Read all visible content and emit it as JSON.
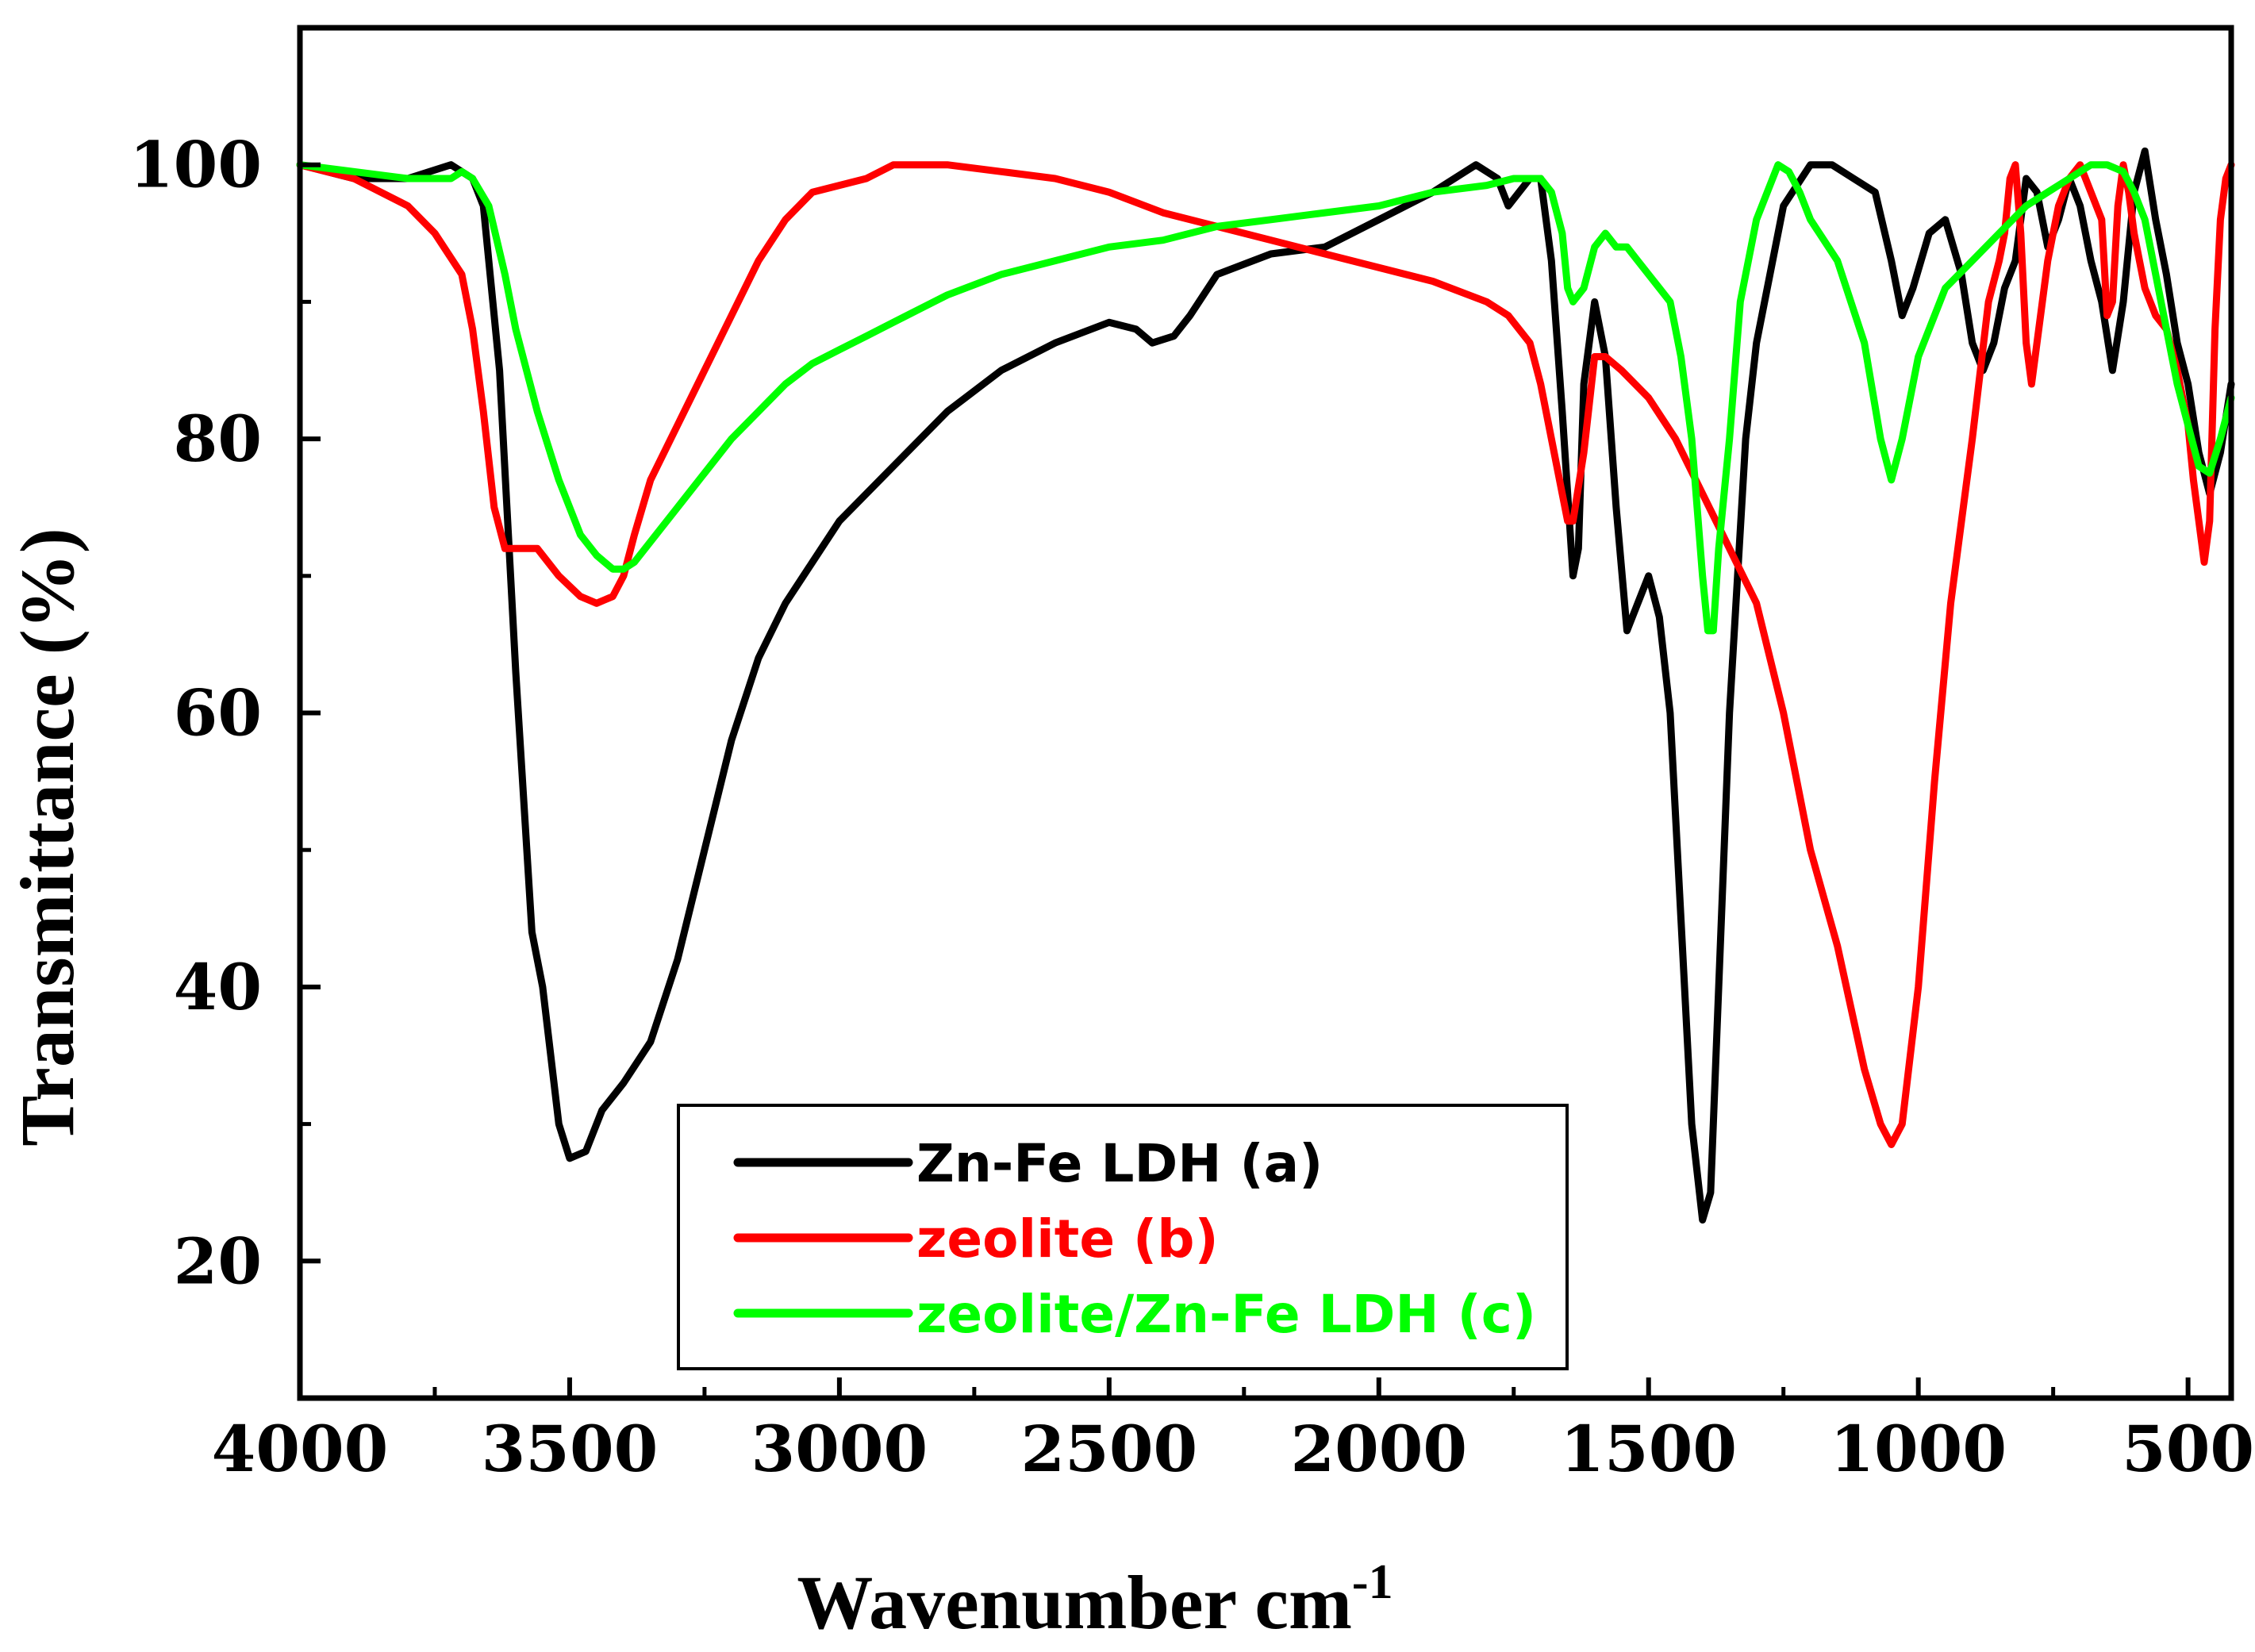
{
  "chart_data": {
    "type": "line",
    "title": "",
    "xlabel": "Wavenumber cm",
    "xlabel_superscript": "-1",
    "ylabel": "Transmittance (%)",
    "xlim": [
      4000,
      420
    ],
    "ylim": [
      10,
      110
    ],
    "x_ticks": [
      4000,
      3500,
      3000,
      2500,
      2000,
      1500,
      1000,
      500
    ],
    "y_ticks": [
      20,
      40,
      60,
      80,
      100
    ],
    "legend_position": "bottom-center",
    "series": [
      {
        "name": "Zn-Fe LDH (a)",
        "color": "#000000",
        "x": [
          4000,
          3900,
          3800,
          3720,
          3680,
          3660,
          3630,
          3600,
          3570,
          3550,
          3520,
          3500,
          3470,
          3440,
          3400,
          3350,
          3300,
          3250,
          3200,
          3150,
          3100,
          3050,
          3000,
          2900,
          2800,
          2700,
          2600,
          2500,
          2450,
          2420,
          2380,
          2350,
          2300,
          2200,
          2100,
          2000,
          1900,
          1820,
          1780,
          1760,
          1740,
          1720,
          1700,
          1680,
          1660,
          1640,
          1630,
          1620,
          1600,
          1580,
          1560,
          1540,
          1520,
          1500,
          1480,
          1460,
          1440,
          1420,
          1400,
          1385,
          1370,
          1350,
          1320,
          1300,
          1270,
          1250,
          1200,
          1160,
          1120,
          1080,
          1050,
          1030,
          1010,
          980,
          950,
          920,
          900,
          880,
          860,
          840,
          820,
          800,
          780,
          760,
          740,
          720,
          700,
          680,
          660,
          640,
          620,
          600,
          580,
          560,
          540,
          520,
          500,
          480,
          460,
          440,
          420
        ],
        "y": [
          100,
          99,
          99,
          100,
          99,
          97,
          85,
          63,
          44,
          40,
          30,
          27.5,
          28,
          31,
          33,
          36,
          42,
          50,
          58,
          64,
          68,
          71,
          74,
          78,
          82,
          85,
          87,
          88.5,
          88,
          87,
          87.5,
          89,
          92,
          93.5,
          94,
          96,
          98,
          100,
          99,
          97,
          98,
          99,
          99,
          93,
          82,
          70,
          72,
          84,
          90,
          86,
          75,
          66,
          68,
          70,
          67,
          60,
          45,
          30,
          23,
          25,
          40,
          60,
          80,
          87,
          93,
          97,
          100,
          100,
          99,
          98,
          93,
          89,
          91,
          95,
          96,
          92,
          87,
          85,
          87,
          91,
          93,
          99,
          98,
          94,
          96,
          99,
          97,
          93,
          90,
          85,
          90,
          98,
          101,
          96,
          92,
          87,
          84,
          79,
          76,
          79,
          84
        ]
      },
      {
        "name": "zeolite (b)",
        "color": "#ff0000",
        "x": [
          4000,
          3900,
          3800,
          3750,
          3700,
          3680,
          3660,
          3640,
          3620,
          3600,
          3560,
          3520,
          3480,
          3450,
          3420,
          3400,
          3380,
          3350,
          3300,
          3250,
          3200,
          3150,
          3100,
          3050,
          3000,
          2950,
          2900,
          2850,
          2800,
          2700,
          2600,
          2500,
          2400,
          2300,
          2200,
          2100,
          2000,
          1900,
          1800,
          1760,
          1720,
          1700,
          1680,
          1660,
          1650,
          1640,
          1620,
          1600,
          1580,
          1550,
          1500,
          1450,
          1400,
          1350,
          1300,
          1250,
          1200,
          1150,
          1100,
          1070,
          1050,
          1030,
          1000,
          970,
          940,
          900,
          870,
          850,
          840,
          830,
          820,
          810,
          800,
          790,
          780,
          760,
          740,
          720,
          700,
          680,
          660,
          650,
          640,
          630,
          620,
          610,
          600,
          590,
          580,
          560,
          540,
          520,
          500,
          490,
          480,
          470,
          460,
          450,
          440,
          430,
          420
        ],
        "y": [
          100,
          99,
          97,
          95,
          92,
          88,
          82,
          75,
          72,
          72,
          72,
          70,
          68.5,
          68,
          68.5,
          70,
          73,
          77,
          81,
          85,
          89,
          93,
          96,
          98,
          98.5,
          99,
          100,
          100,
          100,
          99.5,
          99,
          98,
          96.5,
          95.5,
          94.5,
          93.5,
          92.5,
          91.5,
          90,
          89,
          87,
          84,
          80,
          76,
          74,
          74,
          79,
          86,
          86,
          85,
          83,
          80,
          76,
          72,
          68,
          60,
          50,
          43,
          34,
          30,
          28.5,
          30,
          40,
          55,
          68,
          80,
          90,
          93,
          95,
          99,
          100,
          95,
          87,
          84,
          87,
          93,
          97,
          99,
          100,
          98,
          96,
          89,
          90,
          97,
          100,
          98,
          95,
          93,
          91,
          89,
          88,
          85,
          81,
          77,
          74,
          71,
          74,
          88,
          96,
          99,
          100
        ]
      },
      {
        "name": "zeolite/Zn-Fe LDH (c)",
        "color": "#00ff00",
        "x": [
          4000,
          3900,
          3800,
          3750,
          3720,
          3700,
          3680,
          3650,
          3620,
          3600,
          3560,
          3520,
          3480,
          3450,
          3420,
          3400,
          3380,
          3350,
          3300,
          3250,
          3200,
          3150,
          3100,
          3050,
          3000,
          2950,
          2900,
          2850,
          2800,
          2700,
          2600,
          2500,
          2400,
          2300,
          2200,
          2100,
          2000,
          1900,
          1800,
          1750,
          1720,
          1700,
          1680,
          1660,
          1650,
          1640,
          1620,
          1600,
          1580,
          1560,
          1540,
          1520,
          1500,
          1480,
          1460,
          1440,
          1420,
          1410,
          1400,
          1390,
          1380,
          1370,
          1350,
          1330,
          1300,
          1280,
          1260,
          1240,
          1220,
          1200,
          1150,
          1100,
          1070,
          1050,
          1030,
          1000,
          950,
          900,
          850,
          800,
          760,
          720,
          680,
          650,
          620,
          600,
          580,
          560,
          540,
          520,
          500,
          480,
          460,
          440,
          420
        ],
        "y": [
          100,
          99.5,
          99,
          99,
          99,
          99.5,
          99,
          97,
          92,
          88,
          82,
          77,
          73,
          71.5,
          70.5,
          70.5,
          71,
          72.5,
          75,
          77.5,
          80,
          82,
          84,
          85.5,
          86.5,
          87.5,
          88.5,
          89.5,
          90.5,
          92,
          93,
          94,
          94.5,
          95.5,
          96,
          96.5,
          97,
          98,
          98.5,
          99,
          99,
          99,
          98,
          95,
          91,
          90,
          91,
          94,
          95,
          94,
          94,
          93,
          92,
          91,
          90,
          86,
          80,
          75,
          70,
          66,
          66,
          72,
          80,
          90,
          96,
          98,
          100,
          99.5,
          98,
          96,
          93,
          87,
          80,
          77,
          80,
          86,
          91,
          93,
          95,
          97,
          98,
          99,
          100,
          100,
          99.5,
          98,
          96,
          92,
          88,
          84,
          81,
          78,
          77.5,
          80,
          83
        ]
      }
    ]
  }
}
